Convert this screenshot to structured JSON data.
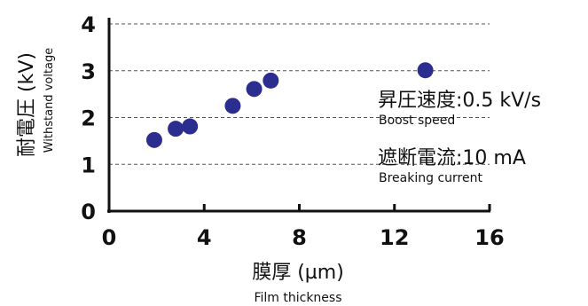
{
  "chart_data": {
    "type": "scatter",
    "x": [
      1.9,
      2.8,
      3.4,
      5.2,
      6.1,
      6.8,
      13.3
    ],
    "y": [
      1.52,
      1.76,
      1.81,
      2.25,
      2.61,
      2.79,
      3.01
    ],
    "xlim": [
      0,
      16
    ],
    "ylim": [
      0,
      4
    ],
    "x_ticks": [
      "0",
      "4",
      "8",
      "12",
      "16"
    ],
    "y_ticks": [
      "0",
      "1",
      "2",
      "3",
      "4"
    ],
    "xlabel": "膜厚 (µm)",
    "xlabel_en": "Film thickness",
    "ylabel": "耐電圧 (kV)",
    "ylabel_en": "Withstand voltage",
    "grid": "horizontal dashed",
    "marker_color": "#2b2e8f",
    "annotations": [
      {
        "main": "昇圧速度:0.5 kV/s",
        "sub": "Boost speed"
      },
      {
        "main": "遮断電流:10 mA",
        "sub": "Breaking current"
      }
    ]
  }
}
